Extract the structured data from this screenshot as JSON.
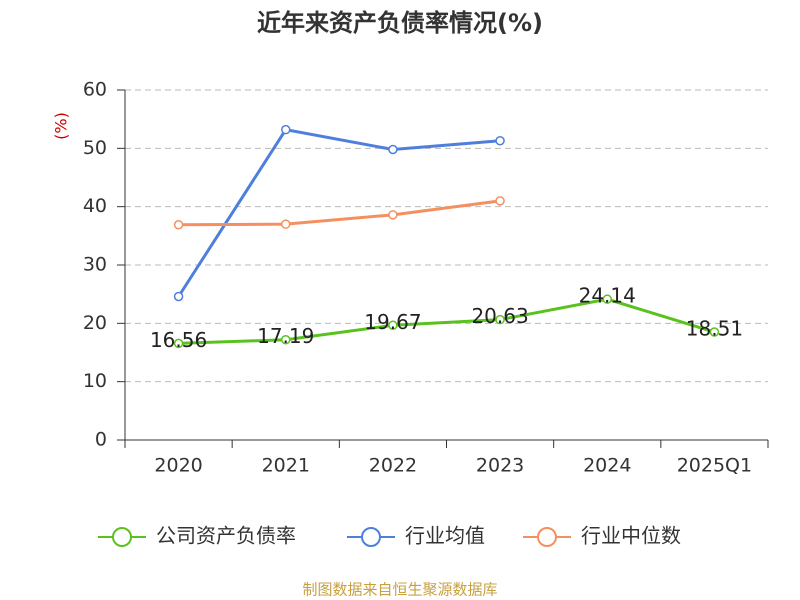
{
  "chart_data": {
    "type": "line",
    "title": "近年来资产负债率情况(%)",
    "y_label": "(%)",
    "categories": [
      "2020",
      "2021",
      "2022",
      "2023",
      "2024",
      "2025Q1"
    ],
    "series": [
      {
        "name": "公司资产负债率",
        "color": "#5ac21e",
        "values": [
          16.56,
          17.19,
          19.67,
          20.63,
          24.14,
          18.51
        ],
        "labels": true
      },
      {
        "name": "行业均值",
        "color": "#4f7fdc",
        "values": [
          24.6,
          53.2,
          49.8,
          51.3,
          null,
          null
        ]
      },
      {
        "name": "行业中位数",
        "color": "#f5905e",
        "values": [
          36.9,
          37.0,
          38.6,
          41.0,
          null,
          null
        ]
      }
    ],
    "ylim": [
      0,
      60
    ],
    "yticks": [
      0,
      10,
      20,
      30,
      40,
      50,
      60
    ],
    "grid": true,
    "source": "制图数据来自恒生聚源数据库"
  }
}
